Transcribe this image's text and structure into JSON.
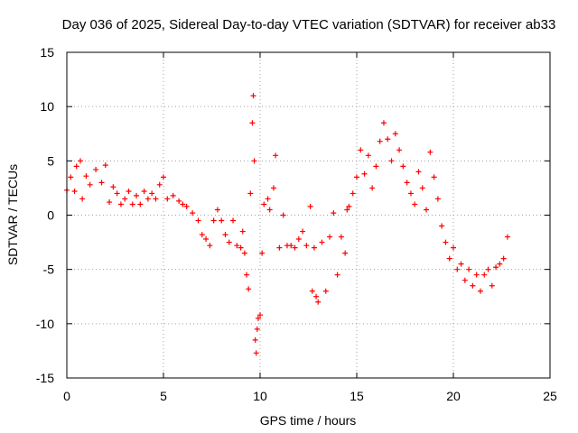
{
  "chart_data": {
    "type": "scatter",
    "title": "Day 036 of 2025, Sidereal Day-to-day VTEC variation (SDTVAR) for receiver ab33",
    "xlabel": "GPS time / hours",
    "ylabel": "SDTVAR / TECUs",
    "xlim": [
      0,
      25
    ],
    "ylim": [
      -15,
      15
    ],
    "x_ticks": [
      0,
      5,
      10,
      15,
      20,
      25
    ],
    "y_ticks": [
      -15,
      -10,
      -5,
      0,
      5,
      10,
      15
    ],
    "x_tick_labels": [
      "0",
      "5",
      "10",
      "15",
      "20",
      "25"
    ],
    "y_tick_labels": [
      "-15",
      "-10",
      "-5",
      "0",
      "5",
      "10",
      "15"
    ],
    "grid": true,
    "marker": "+",
    "series": [
      {
        "name": "SDTVAR",
        "color": "#ff0000",
        "points": [
          [
            0.0,
            2.3
          ],
          [
            0.2,
            3.5
          ],
          [
            0.4,
            2.2
          ],
          [
            0.5,
            4.5
          ],
          [
            0.7,
            5.0
          ],
          [
            0.8,
            1.5
          ],
          [
            1.0,
            3.6
          ],
          [
            1.2,
            2.8
          ],
          [
            1.5,
            4.2
          ],
          [
            1.8,
            3.0
          ],
          [
            2.0,
            4.6
          ],
          [
            2.2,
            1.2
          ],
          [
            2.4,
            2.6
          ],
          [
            2.6,
            2.0
          ],
          [
            2.8,
            1.0
          ],
          [
            3.0,
            1.5
          ],
          [
            3.2,
            2.2
          ],
          [
            3.4,
            1.0
          ],
          [
            3.6,
            1.8
          ],
          [
            3.8,
            1.0
          ],
          [
            4.0,
            2.2
          ],
          [
            4.2,
            1.5
          ],
          [
            4.4,
            2.0
          ],
          [
            4.6,
            1.5
          ],
          [
            4.8,
            2.8
          ],
          [
            5.0,
            3.5
          ],
          [
            5.2,
            1.5
          ],
          [
            5.5,
            1.8
          ],
          [
            5.8,
            1.3
          ],
          [
            6.0,
            1.0
          ],
          [
            6.2,
            0.8
          ],
          [
            6.5,
            0.2
          ],
          [
            6.8,
            -0.5
          ],
          [
            7.0,
            -1.8
          ],
          [
            7.2,
            -2.2
          ],
          [
            7.4,
            -2.8
          ],
          [
            7.6,
            -0.5
          ],
          [
            7.8,
            0.5
          ],
          [
            8.0,
            -0.5
          ],
          [
            8.2,
            -1.8
          ],
          [
            8.4,
            -2.5
          ],
          [
            8.6,
            -0.5
          ],
          [
            8.8,
            -2.8
          ],
          [
            9.0,
            -3.0
          ],
          [
            9.1,
            -1.5
          ],
          [
            9.2,
            -3.5
          ],
          [
            9.3,
            -5.5
          ],
          [
            9.4,
            -6.8
          ],
          [
            9.5,
            2.0
          ],
          [
            9.6,
            8.5
          ],
          [
            9.65,
            11.0
          ],
          [
            9.7,
            5.0
          ],
          [
            9.75,
            -11.5
          ],
          [
            9.8,
            -12.7
          ],
          [
            9.85,
            -10.5
          ],
          [
            9.9,
            -9.5
          ],
          [
            10.0,
            -9.2
          ],
          [
            10.1,
            -3.5
          ],
          [
            10.2,
            1.0
          ],
          [
            10.4,
            1.5
          ],
          [
            10.5,
            0.5
          ],
          [
            10.7,
            2.5
          ],
          [
            10.8,
            5.5
          ],
          [
            11.0,
            -3.0
          ],
          [
            11.2,
            0.0
          ],
          [
            11.4,
            -2.8
          ],
          [
            11.6,
            -2.8
          ],
          [
            11.8,
            -3.0
          ],
          [
            12.0,
            -2.2
          ],
          [
            12.2,
            -1.5
          ],
          [
            12.4,
            -2.8
          ],
          [
            12.6,
            0.8
          ],
          [
            12.7,
            -7.0
          ],
          [
            12.8,
            -3.0
          ],
          [
            12.9,
            -7.5
          ],
          [
            13.0,
            -8.0
          ],
          [
            13.2,
            -2.5
          ],
          [
            13.4,
            -7.0
          ],
          [
            13.6,
            -2.0
          ],
          [
            13.8,
            0.2
          ],
          [
            14.0,
            -5.5
          ],
          [
            14.2,
            -2.0
          ],
          [
            14.4,
            -3.5
          ],
          [
            14.5,
            0.5
          ],
          [
            14.6,
            0.8
          ],
          [
            14.8,
            2.0
          ],
          [
            15.0,
            3.5
          ],
          [
            15.2,
            6.0
          ],
          [
            15.4,
            3.8
          ],
          [
            15.6,
            5.5
          ],
          [
            15.8,
            2.5
          ],
          [
            16.0,
            4.5
          ],
          [
            16.2,
            6.8
          ],
          [
            16.4,
            8.5
          ],
          [
            16.6,
            7.0
          ],
          [
            16.8,
            5.0
          ],
          [
            17.0,
            7.5
          ],
          [
            17.2,
            6.0
          ],
          [
            17.4,
            4.5
          ],
          [
            17.6,
            3.0
          ],
          [
            17.8,
            2.0
          ],
          [
            18.0,
            1.0
          ],
          [
            18.2,
            4.0
          ],
          [
            18.4,
            2.5
          ],
          [
            18.6,
            0.5
          ],
          [
            18.8,
            5.8
          ],
          [
            19.0,
            3.5
          ],
          [
            19.2,
            1.5
          ],
          [
            19.4,
            -1.0
          ],
          [
            19.6,
            -2.5
          ],
          [
            19.8,
            -4.0
          ],
          [
            20.0,
            -3.0
          ],
          [
            20.2,
            -5.0
          ],
          [
            20.4,
            -4.5
          ],
          [
            20.6,
            -6.0
          ],
          [
            20.8,
            -5.0
          ],
          [
            21.0,
            -6.5
          ],
          [
            21.2,
            -5.5
          ],
          [
            21.4,
            -7.0
          ],
          [
            21.6,
            -5.5
          ],
          [
            21.8,
            -5.0
          ],
          [
            22.0,
            -6.5
          ],
          [
            22.2,
            -4.8
          ],
          [
            22.4,
            -4.5
          ],
          [
            22.6,
            -4.0
          ],
          [
            22.8,
            -2.0
          ]
        ]
      }
    ]
  }
}
